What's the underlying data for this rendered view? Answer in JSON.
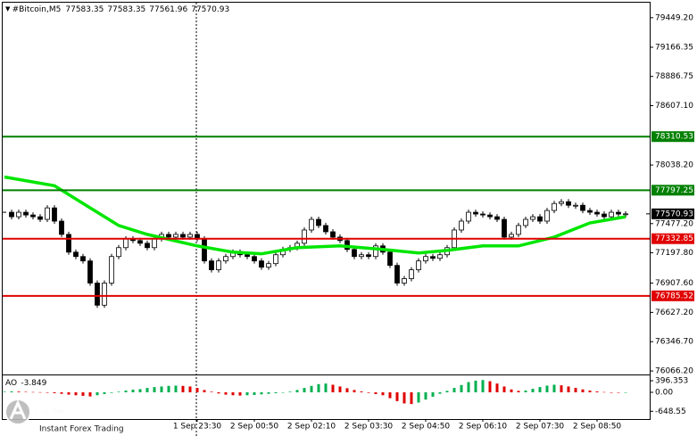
{
  "chart_data": {
    "type": "candlestick",
    "title": "#Bitcoin,M5",
    "header_values": [
      77583.35,
      77583.35,
      77561.96,
      77570.93
    ],
    "x_labels": [
      "1 Sep 23:30",
      "2 Sep 00:50",
      "2 Sep 02:10",
      "2 Sep 03:30",
      "2 Sep 04:50",
      "2 Sep 06:10",
      "2 Sep 07:30",
      "2 Sep 08:50"
    ],
    "closes": [
      77586,
      77543,
      77586,
      77560,
      77543,
      77518,
      77628,
      77501,
      77374,
      77204,
      77162,
      77120,
      76908,
      76696,
      76908,
      77162,
      77247,
      77331,
      77315,
      77289,
      77247,
      77331,
      77374,
      77348,
      77374,
      77348,
      77374,
      77331,
      77120,
      77035,
      77120,
      77162,
      77204,
      77179,
      77162,
      77120,
      77060,
      77094,
      77179,
      77230,
      77247,
      77289,
      77416,
      77518,
      77459,
      77399,
      77348,
      77315,
      77230,
      77162,
      77179,
      77162,
      77264,
      77204,
      77077,
      76908,
      76950,
      77035,
      77120,
      77162,
      77145,
      77179,
      77247,
      77416,
      77501,
      77586,
      77569,
      77560,
      77543,
      77518,
      77348,
      77374,
      77459,
      77518,
      77543,
      77501,
      77603,
      77670,
      77687,
      77653,
      77653,
      77603,
      77586,
      77569,
      77543,
      77586,
      77569,
      77571
    ],
    "color_up": "#ffffff",
    "color_down": "#000000",
    "ma": {
      "color": "#00e600",
      "x": [
        0,
        7,
        12,
        16,
        20,
        27,
        32,
        36,
        41,
        47,
        53,
        58,
        62,
        67,
        72,
        77,
        82,
        87
      ],
      "values": [
        77924,
        77840,
        77628,
        77459,
        77374,
        77264,
        77204,
        77188,
        77247,
        77264,
        77230,
        77196,
        77221,
        77264,
        77264,
        77348,
        77484,
        77543
      ]
    },
    "levels": [
      {
        "value": 78310.53,
        "color": "#008000"
      },
      {
        "value": 77797.25,
        "color": "#008000"
      },
      {
        "value": 77332.85,
        "color": "#e00000"
      },
      {
        "value": 76785.52,
        "color": "#e00000"
      }
    ],
    "last_price": 77570.93,
    "ylim": [
      76024,
      79576
    ],
    "yticks": [
      {
        "value": 79449.2,
        "label": "79449.20"
      },
      {
        "value": 79166.35,
        "label": "79166.35"
      },
      {
        "value": 78886.75,
        "label": "78886.75"
      },
      {
        "value": 78607.1,
        "label": "78607.10"
      },
      {
        "value": 78038.2,
        "label": "78038.20"
      },
      {
        "value": 77477.2,
        "label": "77477.20"
      },
      {
        "value": 77197.8,
        "label": "77197.80"
      },
      {
        "value": 76907.6,
        "label": "76907.60"
      },
      {
        "value": 76627.2,
        "label": "76627.20"
      },
      {
        "value": 76346.7,
        "label": "76346.70"
      },
      {
        "value": 76066.2,
        "label": "76066.20"
      }
    ],
    "indicator": {
      "name": "AO",
      "last_value": -3.849,
      "color_up": "#00b050",
      "color_down": "#e00000",
      "ylim": [
        -915,
        580
      ],
      "yticks": [
        396.353,
        {
          "value": 0,
          "label": "0.00"
        },
        {
          "value": -648.55,
          "label": "-648.55"
        }
      ],
      "values": [
        20,
        30,
        25,
        15,
        10,
        5,
        -10,
        -30,
        -50,
        -80,
        -100,
        -120,
        -140,
        -100,
        -60,
        -20,
        20,
        60,
        90,
        110,
        150,
        180,
        200,
        220,
        230,
        220,
        200,
        150,
        80,
        20,
        -40,
        -80,
        -100,
        -110,
        -100,
        -90,
        -70,
        -50,
        -30,
        -10,
        20,
        80,
        150,
        220,
        280,
        300,
        260,
        200,
        140,
        80,
        30,
        -20,
        -60,
        -100,
        -200,
        -300,
        -380,
        -400,
        -350,
        -250,
        -150,
        -50,
        50,
        150,
        250,
        350,
        400,
        420,
        380,
        300,
        200,
        100,
        50,
        60,
        120,
        180,
        230,
        260,
        240,
        200,
        150,
        100,
        60,
        30,
        10,
        -5,
        -10,
        -3.849
      ]
    },
    "watermark": {
      "brand": "instaforex",
      "tagline": "Instant Forex Trading"
    }
  }
}
